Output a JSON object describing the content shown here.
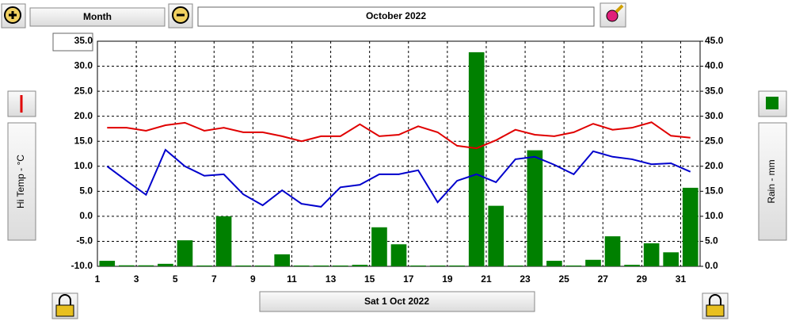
{
  "ui": {
    "period": "Month",
    "date_range": "October 2022",
    "selected_date": "Sat 1 Oct 2022"
  },
  "chart_data": {
    "type": "combo",
    "ylabel": "Hi Temp - °C",
    "y2label": "Rain - mm",
    "x": [
      1.5,
      2.5,
      3.5,
      4.5,
      5.5,
      6.5,
      7.5,
      8.5,
      9.5,
      10.5,
      11.5,
      12.5,
      13.5,
      14.5,
      15.5,
      16.5,
      17.5,
      18.5,
      19.5,
      20.5,
      21.5,
      22.5,
      23.5,
      24.5,
      25.5,
      26.5,
      27.5,
      28.5,
      29.5,
      30.5,
      31.5
    ],
    "xlim": [
      1,
      32
    ],
    "xticks": [
      1,
      3,
      5,
      7,
      9,
      11,
      13,
      15,
      17,
      19,
      21,
      23,
      25,
      27,
      29,
      31
    ],
    "ylim": [
      -10,
      35
    ],
    "yticks": [
      {
        "value": -10,
        "label": "-10.0"
      },
      {
        "value": -5,
        "label": "-5.0"
      },
      {
        "value": 0,
        "label": "0.0"
      },
      {
        "value": 5,
        "label": "5.0"
      },
      {
        "value": 10,
        "label": "10.0"
      },
      {
        "value": 15,
        "label": "15.0"
      },
      {
        "value": 20,
        "label": "20.0"
      },
      {
        "value": 25,
        "label": "25.0"
      },
      {
        "value": 30,
        "label": "30.0"
      },
      {
        "value": 35,
        "label": "35.0"
      }
    ],
    "y2lim": [
      0,
      45
    ],
    "y2ticks": [
      {
        "value": 0,
        "label": "0.0"
      },
      {
        "value": 5,
        "label": "5.0"
      },
      {
        "value": 10,
        "label": "10.0"
      },
      {
        "value": 15,
        "label": "15.0"
      },
      {
        "value": 20,
        "label": "20.0"
      },
      {
        "value": 25,
        "label": "25.0"
      },
      {
        "value": 30,
        "label": "30.0"
      },
      {
        "value": 35,
        "label": "35.0"
      },
      {
        "value": 40,
        "label": "40.0"
      },
      {
        "value": 45,
        "label": "45.0"
      }
    ],
    "grid": true,
    "series": [
      {
        "kind": "bar",
        "axis": "y2",
        "color": "#008000",
        "values": [
          1.1,
          0.2,
          0.2,
          0.5,
          5.2,
          0,
          10.0,
          0,
          0,
          2.4,
          0,
          0,
          0,
          0.3,
          7.8,
          4.4,
          0,
          0,
          0,
          42.8,
          12.1,
          0,
          23.2,
          1.1,
          0,
          1.3,
          6.0,
          0.3,
          4.6,
          2.8,
          15.7
        ]
      },
      {
        "kind": "line",
        "color": "#e00000",
        "values": [
          17.7,
          17.7,
          17.1,
          18.2,
          18.7,
          17.1,
          17.7,
          16.8,
          16.8,
          16.0,
          15.0,
          16.0,
          16.0,
          18.4,
          16.0,
          16.3,
          18.0,
          16.8,
          14.1,
          13.6,
          15.2,
          17.3,
          16.3,
          16.0,
          16.8,
          18.5,
          17.3,
          17.7,
          18.8,
          16.1,
          15.7
        ]
      },
      {
        "kind": "line",
        "color": "#0000cc",
        "values": [
          10.0,
          7.1,
          4.3,
          13.3,
          10.0,
          8.1,
          8.4,
          4.4,
          2.2,
          5.2,
          2.5,
          1.9,
          5.8,
          6.3,
          8.4,
          8.4,
          9.2,
          2.8,
          7.1,
          8.4,
          6.8,
          11.4,
          11.9,
          10.3,
          8.4,
          13.0,
          11.9,
          11.4,
          10.4,
          10.6,
          8.9
        ]
      }
    ]
  }
}
